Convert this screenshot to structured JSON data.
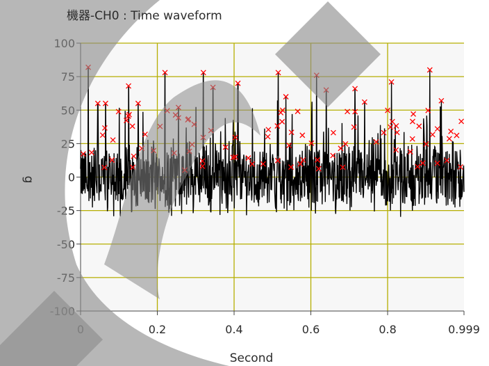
{
  "chart_data": {
    "type": "line",
    "title": "機器-CH0 : Time waveform",
    "xlabel": "Second",
    "ylabel": "g",
    "xlim": [
      0,
      0.999
    ],
    "ylim": [
      -100,
      100
    ],
    "x_ticks": [
      "0",
      "0.2",
      "0.4",
      "0.6",
      "0.8",
      "0.999"
    ],
    "y_ticks": [
      "100",
      "75",
      "50",
      "25",
      "0",
      "-25",
      "-50",
      "-75",
      "-100"
    ],
    "grid": true,
    "colors": {
      "plot_background": "#f7f7f7",
      "grid": "#b5ae00",
      "waveform": "#000000",
      "peak_markers": "#ff0000"
    },
    "peak_marker_symbol": "x",
    "series": [
      {
        "values_note": "",
        "peaks": [
          [
            0.02,
            82
          ],
          [
            0.045,
            55
          ],
          [
            0.065,
            55
          ],
          [
            0.125,
            68
          ],
          [
            0.15,
            55
          ],
          [
            0.22,
            78
          ],
          [
            0.255,
            52
          ],
          [
            0.32,
            78
          ],
          [
            0.345,
            67
          ],
          [
            0.41,
            70
          ],
          [
            0.515,
            78
          ],
          [
            0.535,
            60
          ],
          [
            0.615,
            76
          ],
          [
            0.64,
            65
          ],
          [
            0.715,
            66
          ],
          [
            0.74,
            56
          ],
          [
            0.81,
            71
          ],
          [
            0.91,
            80
          ],
          [
            0.94,
            57
          ]
        ]
      }
    ],
    "watermark_shapes": [
      "swoosh-overlay",
      "diamond-overlay-top",
      "diamond-overlay-bottom-left"
    ]
  }
}
